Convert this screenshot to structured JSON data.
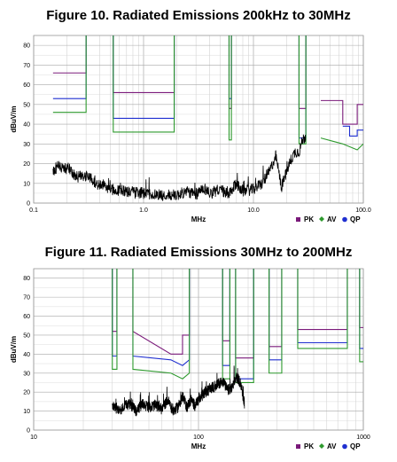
{
  "colors": {
    "pk": "#7a1a7a",
    "av": "#2e9a2e",
    "qp": "#1f2fd0",
    "trace": "#000000",
    "grid": "#d4d4d4",
    "grid_major": "#a8a8a8"
  },
  "chart_data": [
    {
      "type": "line",
      "title": "Figure 10. Radiated Emissions 200kHz to 30MHz",
      "xlabel": "MHz",
      "ylabel": "dBuV/m",
      "x_scale": "log",
      "xlim": [
        0.1,
        100
      ],
      "ylim": [
        0,
        85
      ],
      "x_ticks": [
        0.1,
        1,
        10,
        100
      ],
      "x_tick_labels": [
        "0.1",
        "1.0",
        "10.0",
        "100.0"
      ],
      "y_ticks": [
        0,
        10,
        20,
        30,
        40,
        50,
        60,
        70,
        80
      ],
      "y_tick_labels": [
        "0",
        "10",
        "20",
        "30",
        "40",
        "50",
        "60",
        "70",
        "80"
      ],
      "grid": true,
      "legend": {
        "position": "bottom-right",
        "entries": [
          {
            "label": "PK",
            "marker": "square",
            "key": "pk"
          },
          {
            "label": "AV",
            "marker": "diamond",
            "key": "av"
          },
          {
            "label": "QP",
            "marker": "circle",
            "key": "qp"
          }
        ]
      },
      "series": [
        {
          "key": "pk",
          "x": [
            0.15,
            0.3,
            0.3,
            0.3,
            0.53,
            0.53,
            0.53,
            1.9,
            1.9,
            1.9,
            6.0,
            6.0,
            6.0,
            6.3,
            6.3,
            6.3,
            26,
            26,
            26,
            30,
            30,
            30,
            41,
            41,
            65,
            65,
            88,
            88,
            100
          ],
          "y": [
            66,
            66,
            85,
            null,
            85,
            56,
            56,
            56,
            85,
            null,
            85,
            48,
            48,
            48,
            85,
            null,
            85,
            48,
            48,
            48,
            85,
            null,
            52,
            52,
            52,
            40,
            40,
            50,
            50
          ]
        },
        {
          "key": "qp",
          "x": [
            0.15,
            0.3,
            0.3,
            0.3,
            0.53,
            0.53,
            0.53,
            1.9,
            1.9,
            1.9,
            6.0,
            6.0,
            6.0,
            6.3,
            6.3,
            6.3,
            26,
            26,
            26,
            30,
            30,
            30,
            65,
            65,
            75,
            75,
            88,
            88,
            100
          ],
          "y": [
            53,
            53,
            85,
            null,
            85,
            43,
            43,
            43,
            85,
            null,
            85,
            53,
            53,
            53,
            85,
            null,
            85,
            33,
            33,
            33,
            85,
            null,
            39,
            39,
            39,
            34,
            34,
            37,
            37
          ]
        },
        {
          "key": "av",
          "x": [
            0.15,
            0.3,
            0.3,
            0.3,
            0.53,
            0.53,
            0.53,
            1.9,
            1.9,
            1.9,
            6.0,
            6.0,
            6.0,
            6.3,
            6.3,
            6.3,
            26,
            26,
            26,
            30,
            30,
            30,
            41,
            41,
            65,
            65,
            88,
            88,
            100
          ],
          "y": [
            46,
            46,
            85,
            null,
            85,
            36,
            36,
            36,
            85,
            null,
            85,
            32,
            32,
            32,
            85,
            null,
            85,
            30,
            30,
            30,
            85,
            null,
            33,
            33,
            30,
            30,
            27,
            27,
            30
          ]
        },
        {
          "key": "trace",
          "x": [
            0.15,
            0.17,
            0.19,
            0.21,
            0.24,
            0.3,
            0.4,
            0.5,
            0.7,
            1.0,
            1.5,
            2.0,
            2.5,
            3.0,
            3.5,
            4.0,
            5.0,
            6.0,
            7.0,
            8.0,
            10.0,
            12.0,
            14.0,
            16.0,
            18.0,
            20.0,
            22.0,
            24.0,
            26.0,
            28.0,
            30.0
          ],
          "y": [
            16,
            19,
            17,
            18,
            13,
            14,
            9,
            7,
            6,
            5,
            4,
            4,
            6,
            4,
            8,
            5,
            7,
            4,
            10,
            6,
            7,
            10,
            16,
            24,
            8,
            16,
            22,
            26,
            26,
            32,
            34
          ]
        }
      ]
    },
    {
      "type": "line",
      "title": "Figure 11. Radiated Emissions 30MHz to 200MHz",
      "xlabel": "MHz",
      "ylabel": "dBuV/m",
      "x_scale": "log",
      "xlim": [
        10,
        1000
      ],
      "ylim": [
        0,
        85
      ],
      "x_ticks": [
        10,
        100,
        1000
      ],
      "x_tick_labels": [
        "10",
        "100",
        "1000"
      ],
      "y_ticks": [
        0,
        10,
        20,
        30,
        40,
        50,
        60,
        70,
        80
      ],
      "y_tick_labels": [
        "0",
        "10",
        "20",
        "30",
        "40",
        "50",
        "60",
        "70",
        "80"
      ],
      "grid": true,
      "legend": {
        "position": "bottom-right",
        "entries": [
          {
            "label": "PK",
            "marker": "square",
            "key": "pk"
          },
          {
            "label": "AV",
            "marker": "diamond",
            "key": "av"
          },
          {
            "label": "QP",
            "marker": "circle",
            "key": "qp"
          }
        ]
      },
      "series": [
        {
          "key": "pk",
          "x": [
            30,
            30,
            30,
            32,
            32,
            32,
            40,
            40,
            68,
            68,
            80,
            80,
            88,
            88,
            88,
            140,
            140,
            140,
            155,
            155,
            155,
            168,
            168,
            168,
            216,
            216,
            216,
            268,
            268,
            268,
            320,
            320,
            320,
            400,
            400,
            400,
            800,
            800,
            800,
            950,
            950,
            950,
            1000
          ],
          "y": [
            85,
            52,
            52,
            52,
            85,
            null,
            85,
            52,
            40,
            40,
            40,
            50,
            50,
            50,
            85,
            null,
            85,
            47,
            47,
            47,
            85,
            null,
            85,
            38,
            38,
            38,
            85,
            null,
            85,
            44,
            44,
            44,
            85,
            null,
            85,
            53,
            53,
            53,
            85,
            null,
            85,
            54,
            54
          ]
        },
        {
          "key": "qp",
          "x": [
            30,
            30,
            30,
            32,
            32,
            32,
            40,
            40,
            68,
            68,
            80,
            80,
            88,
            88,
            88,
            140,
            140,
            140,
            155,
            155,
            155,
            168,
            168,
            168,
            216,
            216,
            216,
            268,
            268,
            268,
            320,
            320,
            320,
            400,
            400,
            400,
            800,
            800,
            800,
            950,
            950,
            950,
            1000
          ],
          "y": [
            85,
            39,
            39,
            39,
            85,
            null,
            85,
            39,
            37,
            37,
            34,
            34,
            37,
            37,
            85,
            null,
            85,
            34,
            34,
            34,
            85,
            null,
            85,
            27,
            27,
            27,
            85,
            null,
            85,
            37,
            37,
            37,
            85,
            null,
            85,
            46,
            46,
            46,
            85,
            null,
            85,
            43,
            43
          ]
        },
        {
          "key": "av",
          "x": [
            30,
            30,
            30,
            32,
            32,
            32,
            40,
            40,
            68,
            68,
            80,
            80,
            88,
            88,
            88,
            140,
            140,
            140,
            155,
            155,
            155,
            168,
            168,
            168,
            216,
            216,
            216,
            268,
            268,
            268,
            320,
            320,
            320,
            400,
            400,
            400,
            800,
            800,
            800,
            950,
            950,
            950,
            1000
          ],
          "y": [
            85,
            32,
            32,
            32,
            85,
            null,
            85,
            32,
            30,
            30,
            27,
            27,
            30,
            30,
            85,
            null,
            85,
            27,
            27,
            27,
            85,
            null,
            85,
            25,
            25,
            25,
            85,
            null,
            85,
            30,
            30,
            30,
            85,
            null,
            85,
            43,
            43,
            43,
            85,
            null,
            85,
            36,
            36
          ]
        },
        {
          "key": "trace",
          "x": [
            30,
            34,
            38,
            42,
            46,
            50,
            55,
            60,
            65,
            70,
            75,
            80,
            85,
            90,
            95,
            100,
            110,
            120,
            130,
            140,
            150,
            160,
            170,
            180,
            190
          ],
          "y": [
            12,
            11,
            14,
            10,
            14,
            12,
            13,
            11,
            16,
            10,
            12,
            18,
            12,
            16,
            13,
            16,
            20,
            22,
            24,
            26,
            21,
            22,
            28,
            25,
            14
          ]
        }
      ]
    }
  ]
}
